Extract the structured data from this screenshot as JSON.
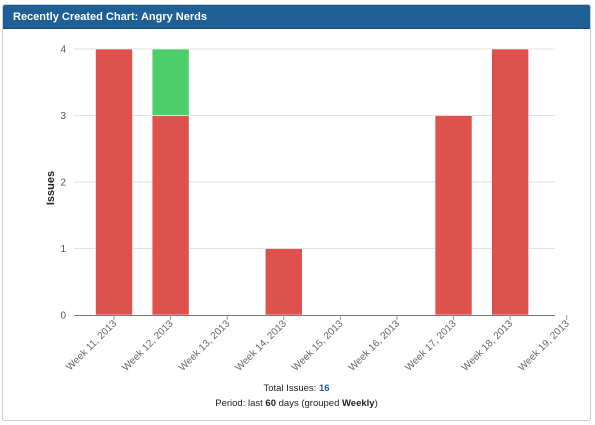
{
  "header": {
    "title": "Recently Created Chart: Angry Nerds"
  },
  "chart_data": {
    "type": "bar",
    "stacked": true,
    "categories": [
      "Week 11, 2013",
      "Week 12, 2013",
      "Week 13, 2013",
      "Week 14, 2013",
      "Week 15, 2013",
      "Week 16, 2013",
      "Week 17, 2013",
      "Week 18, 2013",
      "Week 19, 2013"
    ],
    "series": [
      {
        "color": "#de524d",
        "values": [
          4,
          3,
          0,
          1,
          0,
          0,
          3,
          4,
          0
        ]
      },
      {
        "color": "#4ccf6a",
        "values": [
          0,
          1,
          0,
          0,
          0,
          0,
          0,
          0,
          0
        ]
      }
    ],
    "yticks": [
      "0",
      "1",
      "2",
      "3",
      "4"
    ],
    "ylabel": "Issues",
    "ylim": [
      0,
      4
    ],
    "grid": true
  },
  "footer": {
    "total_label": "Total Issues: ",
    "total_value": "16",
    "period_prefix": "Period: last ",
    "period_days": "60",
    "period_mid": " days (grouped ",
    "period_group": "Weekly",
    "period_suffix": ")"
  }
}
